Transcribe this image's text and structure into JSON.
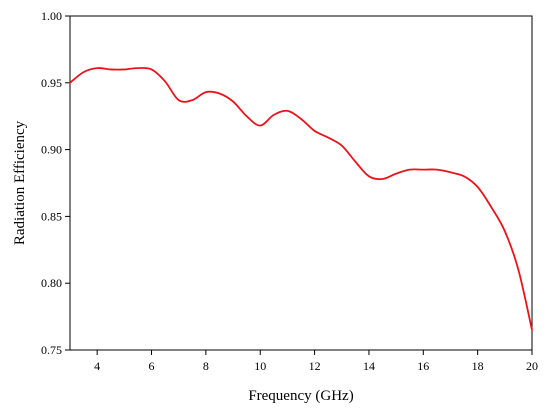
{
  "chart_data": {
    "type": "line",
    "title": "",
    "xlabel": "Frequency (GHz)",
    "ylabel": "Radiation Efficiency",
    "xlim": [
      3,
      20
    ],
    "ylim": [
      0.75,
      1.0
    ],
    "x_ticks": [
      4,
      6,
      8,
      10,
      12,
      14,
      16,
      18,
      20
    ],
    "x_tick_labels": [
      "4",
      "6",
      "8",
      "10",
      "12",
      "14",
      "16",
      "18",
      "20"
    ],
    "y_ticks": [
      0.75,
      0.8,
      0.85,
      0.9,
      0.95,
      1.0
    ],
    "y_tick_labels": [
      "0.75",
      "0.80",
      "0.85",
      "0.90",
      "0.95",
      "1.00"
    ],
    "grid": false,
    "legend": "none",
    "series": [
      {
        "color": "#e8141c",
        "x": [
          3.0,
          3.5,
          4.0,
          4.5,
          5.0,
          5.5,
          6.0,
          6.5,
          7.0,
          7.5,
          8.0,
          8.5,
          9.0,
          9.5,
          10.0,
          10.5,
          11.0,
          11.5,
          12.0,
          12.5,
          13.0,
          13.5,
          14.0,
          14.5,
          15.0,
          15.5,
          16.0,
          16.5,
          17.0,
          17.5,
          18.0,
          18.5,
          19.0,
          19.5,
          20.0
        ],
        "y": [
          0.95,
          0.958,
          0.961,
          0.96,
          0.96,
          0.961,
          0.96,
          0.951,
          0.937,
          0.937,
          0.943,
          0.942,
          0.936,
          0.925,
          0.918,
          0.926,
          0.929,
          0.923,
          0.914,
          0.909,
          0.903,
          0.891,
          0.88,
          0.878,
          0.882,
          0.885,
          0.885,
          0.885,
          0.883,
          0.88,
          0.872,
          0.857,
          0.839,
          0.81,
          0.765
        ]
      }
    ]
  }
}
